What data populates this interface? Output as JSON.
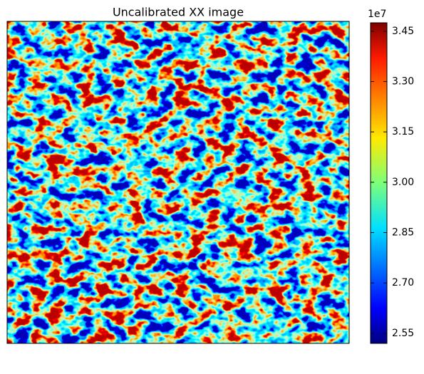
{
  "chart_data": {
    "type": "heatmap",
    "title": "Uncalibrated XX image",
    "colormap": "jet",
    "colorbar": {
      "offset_label": "1e7",
      "lim": [
        25200000,
        34750000
      ],
      "ticks": [
        {
          "value": 25500000,
          "label": "2.55"
        },
        {
          "value": 27000000,
          "label": "2.70"
        },
        {
          "value": 28500000,
          "label": "2.85"
        },
        {
          "value": 30000000,
          "label": "3.00"
        },
        {
          "value": 31500000,
          "label": "3.15"
        },
        {
          "value": 33000000,
          "label": "3.30"
        },
        {
          "value": 34500000,
          "label": "3.45"
        }
      ]
    }
  }
}
